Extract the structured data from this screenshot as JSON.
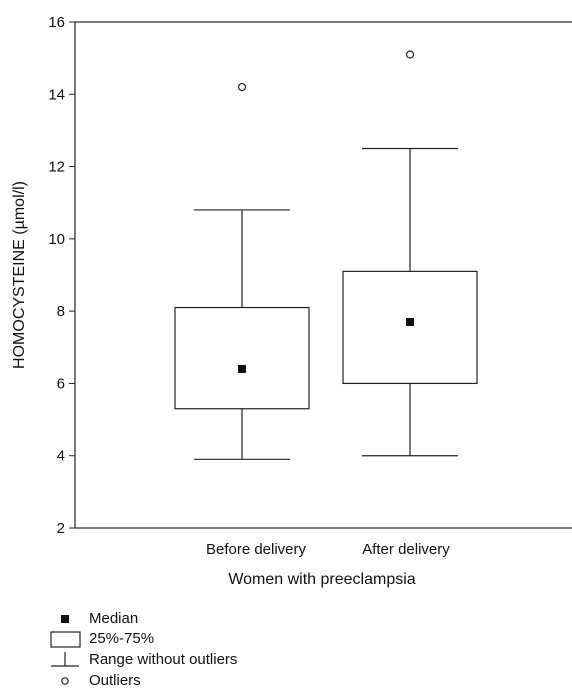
{
  "chart_data": {
    "type": "box",
    "xlabel": "Women with preeclampsia",
    "ylabel": "HOMOCYSTEINE  (µmol/l)",
    "ylim": [
      2,
      16
    ],
    "yticks": [
      2,
      4,
      6,
      8,
      10,
      12,
      14,
      16
    ],
    "grid": false,
    "categories": [
      "Before delivery",
      "After delivery"
    ],
    "boxes": [
      {
        "category": "Before delivery",
        "median": 6.4,
        "q1": 5.3,
        "q3": 8.1,
        "whisker_low": 3.9,
        "whisker_high": 10.8,
        "outliers": [
          14.2
        ]
      },
      {
        "category": "After delivery",
        "median": 7.7,
        "q1": 6.0,
        "q3": 9.1,
        "whisker_low": 4.0,
        "whisker_high": 12.5,
        "outliers": [
          15.1
        ]
      }
    ],
    "legend": {
      "placement": "bottom-left",
      "items": [
        {
          "symbol": "median-square",
          "label": "Median"
        },
        {
          "symbol": "box",
          "label": "25%-75%"
        },
        {
          "symbol": "whisker",
          "label": "Range without outliers"
        },
        {
          "symbol": "outlier-circle",
          "label": "Outliers"
        }
      ]
    }
  }
}
